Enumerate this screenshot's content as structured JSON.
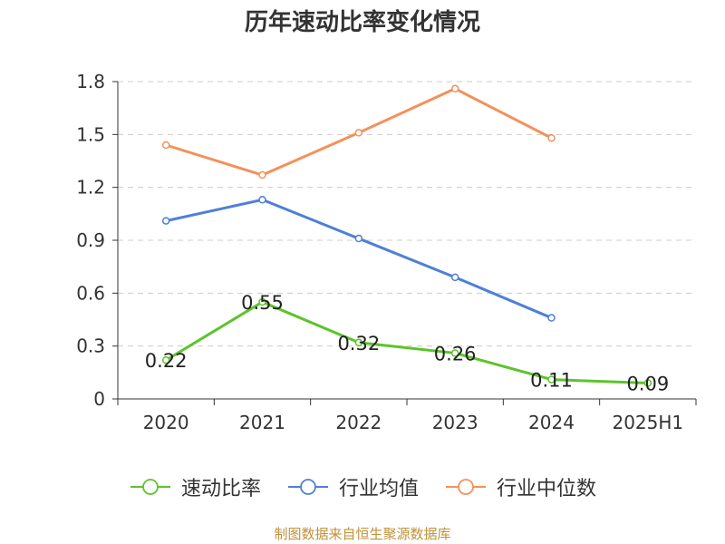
{
  "title": "历年速动比率变化情况",
  "footer": "制图数据来自恒生聚源数据库",
  "chart_data": {
    "type": "line",
    "title": "历年速动比率变化情况",
    "categories": [
      "2020",
      "2021",
      "2022",
      "2023",
      "2024",
      "2025H1"
    ],
    "ylim": [
      0,
      1.8
    ],
    "yticks": [
      "0",
      "0.3",
      "0.6",
      "0.9",
      "1.2",
      "1.5",
      "1.8"
    ],
    "grid": true,
    "legend_position": "bottom",
    "series": [
      {
        "name": "速动比率",
        "color": "#5cc42b",
        "values": [
          0.22,
          0.55,
          0.32,
          0.26,
          0.11,
          0.09
        ],
        "labels": [
          "0.22",
          "0.55",
          "0.32",
          "0.26",
          "0.11",
          "0.09"
        ]
      },
      {
        "name": "行业均值",
        "color": "#4f7fd9",
        "values": [
          1.01,
          1.13,
          0.91,
          0.69,
          0.46,
          null
        ]
      },
      {
        "name": "行业中位数",
        "color": "#f5905a",
        "values": [
          1.44,
          1.27,
          1.51,
          1.76,
          1.48,
          null
        ]
      }
    ]
  }
}
